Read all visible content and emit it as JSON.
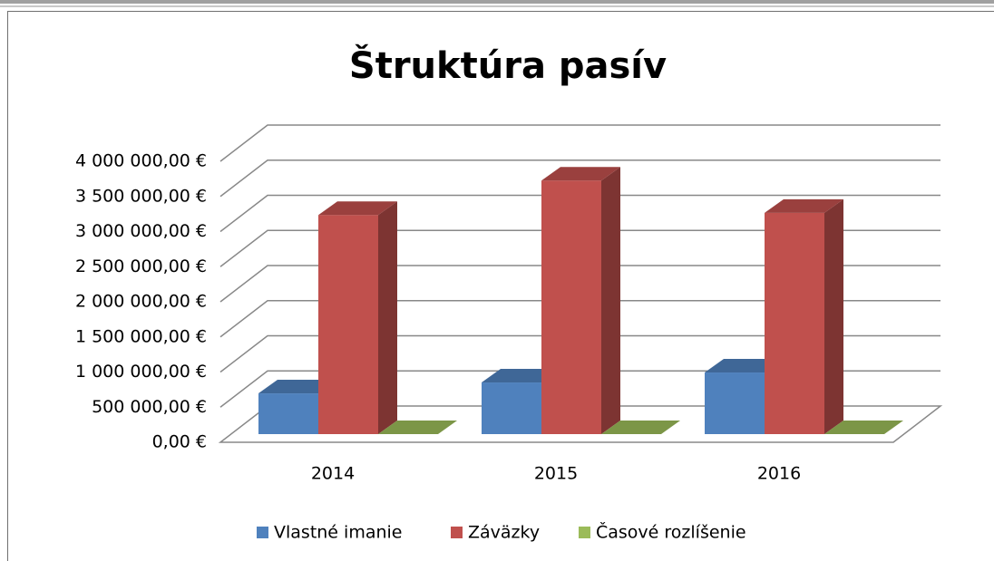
{
  "chart_data": {
    "type": "bar3d",
    "title": "Štruktúra pasív",
    "categories": [
      "2014",
      "2015",
      "2016"
    ],
    "series": [
      {
        "name": "Vlastné imanie",
        "color": "#4f81bd",
        "values": [
          580000,
          735000,
          877000
        ]
      },
      {
        "name": "Záväzky",
        "color": "#c0504d",
        "values": [
          3120000,
          3610000,
          3150000
        ]
      },
      {
        "name": "Časové rozlíšenie",
        "color": "#9bbb59",
        "values": [
          0,
          0,
          0
        ]
      }
    ],
    "ylim": [
      0,
      4000000
    ],
    "yticks": [
      {
        "value": 0,
        "label": "0,00 €"
      },
      {
        "value": 500000,
        "label": "500 000,00 €"
      },
      {
        "value": 1000000,
        "label": "1 000 000,00 €"
      },
      {
        "value": 1500000,
        "label": "1 500 000,00 €"
      },
      {
        "value": 2000000,
        "label": "2 000 000,00 €"
      },
      {
        "value": 2500000,
        "label": "2 500 000,00 €"
      },
      {
        "value": 3000000,
        "label": "3 000 000,00 €"
      },
      {
        "value": 3500000,
        "label": "3 500 000,00 €"
      },
      {
        "value": 4000000,
        "label": "4 000 000,00 €"
      }
    ],
    "grid": true,
    "legend": "bottom"
  }
}
